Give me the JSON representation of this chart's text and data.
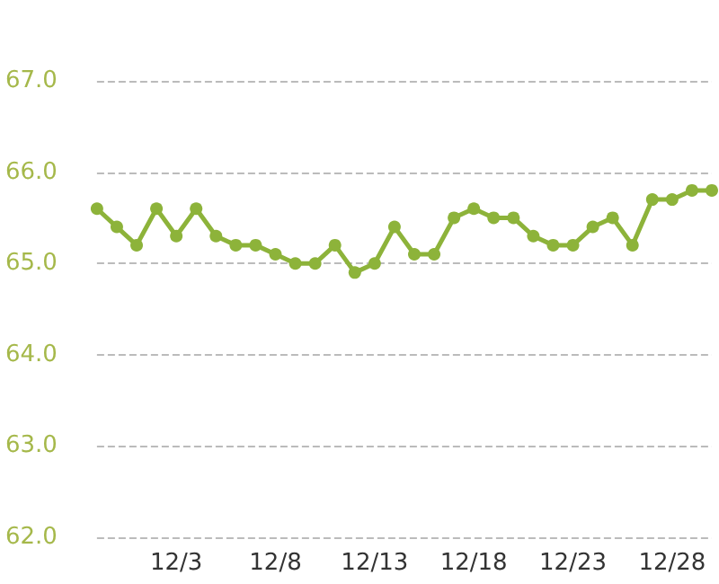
{
  "chart_data": {
    "type": "line",
    "categories": [
      null,
      null,
      null,
      null,
      "12/3",
      null,
      null,
      null,
      null,
      "12/8",
      null,
      null,
      null,
      null,
      "12/13",
      null,
      null,
      null,
      null,
      "12/18",
      null,
      null,
      null,
      null,
      "12/23",
      null,
      null,
      null,
      null,
      "12/28",
      null,
      null
    ],
    "series": [
      {
        "color": "#8db33a",
        "values": [
          65.6,
          65.4,
          65.2,
          65.6,
          65.3,
          65.6,
          65.3,
          65.2,
          65.2,
          65.1,
          65.0,
          65.0,
          65.2,
          64.9,
          65.0,
          65.4,
          65.1,
          65.1,
          65.5,
          65.6,
          65.5,
          65.5,
          65.3,
          65.2,
          65.2,
          65.4,
          65.5,
          65.2,
          65.7,
          65.7,
          65.8,
          65.8
        ]
      }
    ],
    "ylim": [
      62,
      67
    ],
    "yticks": [
      {
        "value": 62,
        "label": "62.0"
      },
      {
        "value": 63,
        "label": "63.0"
      },
      {
        "value": 64,
        "label": "64.0"
      },
      {
        "value": 65,
        "label": "65.0"
      },
      {
        "value": 66,
        "label": "66.0"
      },
      {
        "value": 67,
        "label": "67.0"
      }
    ],
    "grid": "y",
    "marker": "circle",
    "line_style": "solid"
  }
}
